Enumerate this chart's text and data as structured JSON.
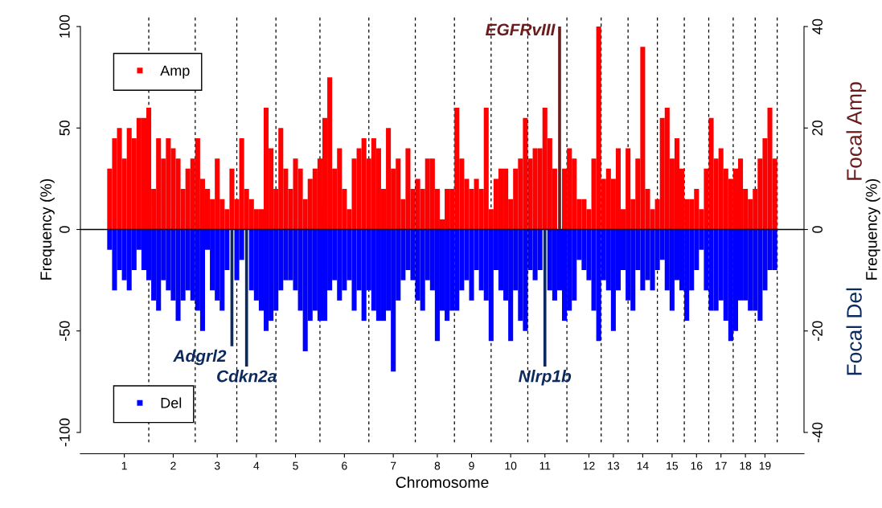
{
  "chart_data": {
    "type": "bar",
    "xlabel": "Chromosome",
    "ylabel": "Frequency (%)",
    "y2label": "Frequency (%)",
    "categories": [
      null,
      null,
      null,
      "1",
      null,
      null,
      null,
      null,
      null,
      null,
      null,
      null,
      null,
      "2",
      null,
      null,
      null,
      null,
      null,
      null,
      null,
      null,
      "3",
      null,
      null,
      null,
      null,
      null,
      null,
      null,
      "4",
      null,
      null,
      null,
      null,
      null,
      null,
      null,
      "5",
      null,
      null,
      null,
      null,
      null,
      null,
      null,
      null,
      null,
      "6",
      null,
      null,
      null,
      null,
      null,
      null,
      null,
      null,
      null,
      "7",
      null,
      null,
      null,
      null,
      null,
      null,
      null,
      null,
      "8",
      null,
      null,
      null,
      null,
      null,
      null,
      "9",
      null,
      null,
      null,
      null,
      null,
      null,
      null,
      "10",
      null,
      null,
      null,
      null,
      null,
      null,
      "11",
      null,
      null,
      null,
      null,
      null,
      null,
      null,
      null,
      "12",
      null,
      null,
      null,
      null,
      "13",
      null,
      null,
      null,
      null,
      null,
      "14",
      null,
      null,
      null,
      null,
      null,
      "15",
      null,
      null,
      null,
      null,
      "16",
      null,
      null,
      null,
      null,
      "17",
      null,
      null,
      null,
      null,
      "18",
      null,
      null,
      null,
      "19",
      null,
      null
    ],
    "ylim": [
      -105,
      105
    ],
    "yticks": [
      -100,
      -50,
      0,
      50,
      100
    ],
    "y2lim": [
      -42,
      42
    ],
    "y2ticks": [
      -40,
      -20,
      0,
      20,
      40
    ],
    "legend": "left",
    "grid": false,
    "stacked": true,
    "ref_lines": [
      {
        "axis": "y",
        "value": 0,
        "color": "#000000",
        "line_style": "solid"
      }
    ],
    "annotations": [
      "EGFRvIII",
      "Adgrl2",
      "Cdkn2a",
      "Nlrp1b"
    ],
    "series": [
      {
        "name": "Amp",
        "type": "bar",
        "color": "#ff0000",
        "values": [
          30,
          45,
          50,
          35,
          50,
          45,
          55,
          55,
          60,
          20,
          45,
          35,
          45,
          40,
          35,
          20,
          30,
          35,
          45,
          25,
          20,
          15,
          35,
          15,
          10,
          30,
          15,
          45,
          20,
          15,
          10,
          10,
          60,
          40,
          20,
          50,
          30,
          20,
          35,
          30,
          15,
          25,
          30,
          35,
          55,
          75,
          30,
          40,
          20,
          10,
          35,
          40,
          45,
          35,
          45,
          40,
          20,
          50,
          30,
          35,
          15,
          40,
          20,
          25,
          20,
          35,
          35,
          20,
          5,
          20,
          20,
          60,
          35,
          25,
          20,
          25,
          20,
          60,
          10,
          25,
          30,
          30,
          15,
          30,
          35,
          55,
          35,
          40,
          40,
          60,
          45,
          30,
          null,
          30,
          40,
          35,
          15,
          15,
          10,
          35,
          100,
          25,
          30,
          25,
          40,
          10,
          40,
          15,
          35,
          90,
          20,
          10,
          15,
          55,
          60,
          35,
          45,
          30,
          15,
          15,
          20,
          10,
          30,
          55,
          35,
          40,
          30,
          25,
          30,
          35,
          20,
          15,
          20,
          35,
          45,
          60,
          35
        ]
      },
      {
        "name": "Del",
        "type": "bar",
        "color": "#0000ff",
        "values": [
          -10,
          -30,
          -20,
          -25,
          -30,
          -20,
          -10,
          -20,
          -25,
          -35,
          -40,
          -25,
          -30,
          -35,
          -45,
          -35,
          -30,
          -35,
          -40,
          -50,
          -10,
          -30,
          -35,
          -40,
          -20,
          null,
          -25,
          -15,
          null,
          -30,
          -35,
          -40,
          -50,
          -45,
          -40,
          -30,
          -25,
          -25,
          -30,
          -40,
          -60,
          -45,
          -40,
          -45,
          -45,
          -30,
          -25,
          -35,
          -30,
          -25,
          -40,
          -30,
          -45,
          -30,
          -40,
          -45,
          -45,
          -40,
          -70,
          -35,
          -25,
          -20,
          -25,
          -35,
          -40,
          -25,
          -30,
          -55,
          -40,
          -45,
          -40,
          -40,
          -30,
          -25,
          -35,
          -20,
          -30,
          -35,
          -55,
          -20,
          -30,
          -35,
          -55,
          -30,
          -45,
          -50,
          -20,
          -25,
          -20,
          null,
          -30,
          -35,
          -30,
          -45,
          -40,
          -35,
          -15,
          -20,
          -25,
          -40,
          -55,
          -25,
          -30,
          -50,
          -30,
          -20,
          -35,
          -40,
          -20,
          -30,
          -25,
          -30,
          -20,
          -15,
          -30,
          -40,
          -25,
          -30,
          -45,
          -30,
          -20,
          -10,
          -30,
          -40,
          -40,
          -35,
          -45,
          -55,
          -50,
          -35,
          -35,
          -40,
          -40,
          -45,
          -30,
          -20,
          -20
        ]
      },
      {
        "name": "Focal Amp",
        "type": "bar",
        "axis": "y2",
        "color": "#6b1c1c",
        "values": [
          null,
          null,
          null,
          null,
          null,
          null,
          null,
          null,
          null,
          null,
          null,
          null,
          null,
          null,
          null,
          null,
          null,
          null,
          null,
          null,
          null,
          null,
          null,
          null,
          null,
          null,
          null,
          null,
          null,
          null,
          null,
          null,
          null,
          null,
          null,
          null,
          null,
          null,
          null,
          null,
          null,
          null,
          null,
          null,
          null,
          null,
          null,
          null,
          null,
          null,
          null,
          null,
          null,
          null,
          null,
          null,
          null,
          null,
          null,
          null,
          null,
          null,
          null,
          null,
          null,
          null,
          null,
          null,
          null,
          null,
          null,
          null,
          null,
          null,
          null,
          null,
          null,
          null,
          null,
          null,
          null,
          null,
          null,
          null,
          null,
          null,
          null,
          null,
          null,
          null,
          null,
          null,
          40,
          null,
          null,
          null,
          null,
          null,
          null,
          null,
          null,
          null,
          null,
          null,
          null,
          null,
          null,
          null,
          null,
          null,
          null,
          null,
          null,
          null,
          null,
          null,
          null,
          null,
          null,
          null,
          null,
          null,
          null,
          null,
          null,
          null,
          null,
          null,
          null,
          null,
          null,
          null,
          null,
          null,
          null,
          null,
          null
        ]
      },
      {
        "name": "Focal Del",
        "type": "bar",
        "axis": "y2",
        "color": "#0c2a5e",
        "values": [
          null,
          null,
          null,
          null,
          null,
          null,
          null,
          null,
          null,
          null,
          null,
          null,
          null,
          null,
          null,
          null,
          null,
          null,
          null,
          null,
          null,
          null,
          null,
          null,
          null,
          -23,
          null,
          null,
          -27,
          null,
          null,
          null,
          null,
          null,
          null,
          null,
          null,
          null,
          null,
          null,
          null,
          null,
          null,
          null,
          null,
          null,
          null,
          null,
          null,
          null,
          null,
          null,
          null,
          null,
          null,
          null,
          null,
          null,
          null,
          null,
          null,
          null,
          null,
          null,
          null,
          null,
          null,
          null,
          null,
          null,
          null,
          null,
          null,
          null,
          null,
          null,
          null,
          null,
          null,
          null,
          null,
          null,
          null,
          null,
          null,
          null,
          null,
          null,
          null,
          -27,
          null,
          null,
          null,
          null,
          null,
          null,
          null,
          null,
          null,
          null,
          null,
          null,
          null,
          null,
          null,
          null,
          null,
          null,
          null,
          null,
          null,
          null,
          null,
          null,
          null,
          null,
          null,
          null,
          null,
          null,
          null,
          null,
          null,
          null,
          null,
          null,
          null,
          null,
          null,
          null,
          null,
          null,
          null,
          null,
          null,
          null,
          null
        ]
      }
    ]
  }
}
